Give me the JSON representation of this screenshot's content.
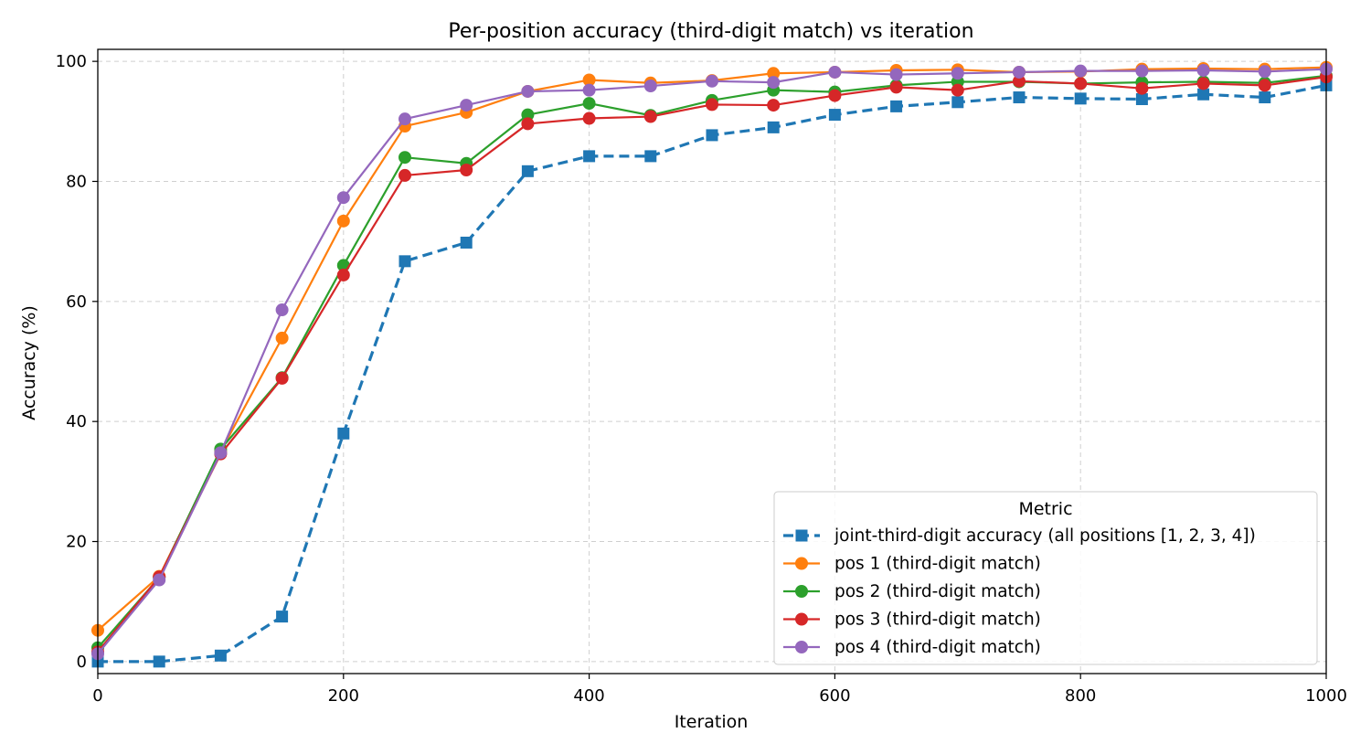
{
  "chart_data": {
    "type": "line",
    "title": "Per-position accuracy (third-digit match) vs iteration",
    "xlabel": "Iteration",
    "ylabel": "Accuracy (%)",
    "xlim": [
      0,
      1000
    ],
    "ylim": [
      -2,
      102
    ],
    "xticks": [
      0,
      200,
      400,
      600,
      800,
      1000
    ],
    "yticks": [
      0,
      20,
      40,
      60,
      80,
      100
    ],
    "grid": true,
    "legend": {
      "title": "Metric",
      "placement": "lower-right"
    },
    "x": [
      0,
      50,
      100,
      150,
      200,
      250,
      300,
      350,
      400,
      450,
      500,
      550,
      600,
      650,
      700,
      750,
      800,
      850,
      900,
      950,
      1000
    ],
    "series": [
      {
        "name": "joint-third-digit accuracy (all positions [1, 2, 3, 4])",
        "color": "#1f77b4",
        "marker": "square",
        "linestyle": "dashed",
        "values": [
          0,
          0,
          1,
          7.5,
          38,
          66.7,
          69.8,
          81.7,
          84.2,
          84.2,
          87.7,
          89,
          91.1,
          92.5,
          93.2,
          94,
          93.8,
          93.7,
          94.5,
          94,
          96
        ]
      },
      {
        "name": "pos 1 (third-digit match)",
        "color": "#ff7f0e",
        "marker": "circle",
        "linestyle": "solid",
        "values": [
          5.2,
          14.2,
          35,
          53.9,
          73.4,
          89.2,
          91.5,
          95,
          96.9,
          96.4,
          96.8,
          98,
          98.2,
          98.5,
          98.6,
          98.2,
          98.3,
          98.7,
          98.8,
          98.7,
          99
        ]
      },
      {
        "name": "pos 2 (third-digit match)",
        "color": "#2ca02c",
        "marker": "circle",
        "linestyle": "solid",
        "values": [
          2.3,
          14,
          35.4,
          47.3,
          66,
          84,
          83,
          91.1,
          93,
          91,
          93.5,
          95.2,
          94.9,
          96,
          96.6,
          96.6,
          96.3,
          96.5,
          96.6,
          96.4,
          97.6
        ]
      },
      {
        "name": "pos 3 (third-digit match)",
        "color": "#d62728",
        "marker": "circle",
        "linestyle": "solid",
        "values": [
          1.6,
          14.1,
          34.6,
          47.2,
          64.4,
          81,
          81.9,
          89.6,
          90.5,
          90.8,
          92.8,
          92.7,
          94.3,
          95.7,
          95.2,
          96.7,
          96.3,
          95.5,
          96.3,
          96,
          97.4
        ]
      },
      {
        "name": "pos 4 (third-digit match)",
        "color": "#9467bd",
        "marker": "circle",
        "linestyle": "solid",
        "values": [
          1.3,
          13.6,
          34.8,
          58.6,
          77.3,
          90.4,
          92.7,
          95,
          95.2,
          95.9,
          96.7,
          96.5,
          98.2,
          97.8,
          98,
          98.2,
          98.4,
          98.4,
          98.5,
          98.3,
          98.7
        ]
      }
    ]
  }
}
